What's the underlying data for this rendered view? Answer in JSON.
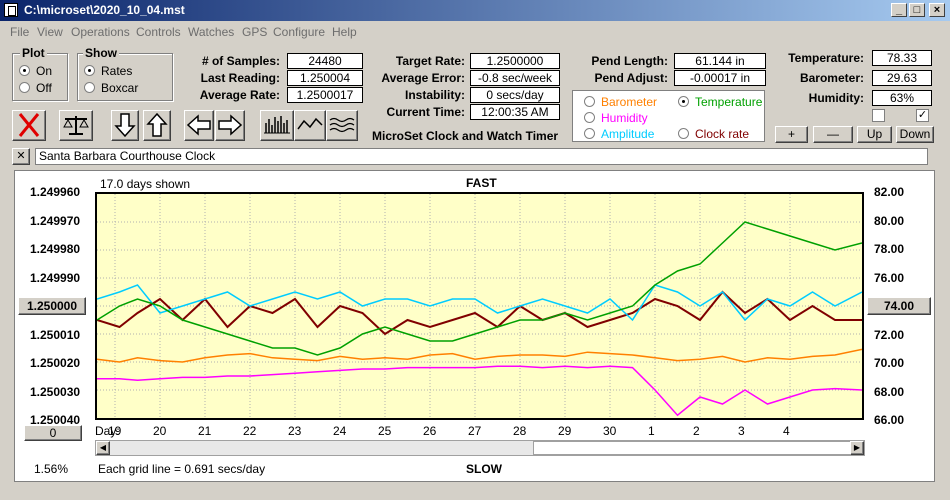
{
  "window": {
    "title": "C:\\microset\\2020_10_04.mst"
  },
  "menu": [
    "File",
    "View",
    "Operations",
    "Controls",
    "Watches",
    "GPS",
    "Configure",
    "Help"
  ],
  "plot_group": {
    "title": "Plot",
    "options": [
      "On",
      "Off"
    ],
    "selected": "On"
  },
  "show_group": {
    "title": "Show",
    "options": [
      "Rates",
      "Boxcar"
    ],
    "selected": "Rates"
  },
  "stats": {
    "samples_label": "# of Samples:",
    "samples": "24480",
    "last_label": "Last Reading:",
    "last": "1.250004",
    "avg_label": "Average Rate:",
    "avg": "1.2500017",
    "target_label": "Target Rate:",
    "target": "1.2500000",
    "avgerr_label": "Average Error:",
    "avgerr": "-0.8 sec/week",
    "instab_label": "Instability:",
    "instab": "0 secs/day",
    "time_label": "Current Time:",
    "time": "12:00:35 AM",
    "pendlen_label": "Pend Length:",
    "pendlen": "61.144 in",
    "pendadj_label": "Pend Adjust:",
    "pendadj": "-0.00017 in",
    "temp_label": "Temperature:",
    "temp": "78.33",
    "baro_label": "Barometer:",
    "baro": "29.63",
    "hum_label": "Humidity:",
    "hum": "63%"
  },
  "app_caption": "MicroSet Clock and Watch Timer",
  "sensors": [
    {
      "name": "Barometer",
      "color": "#ff8000",
      "selected": false
    },
    {
      "name": "Temperature",
      "color": "#00a000",
      "selected": true
    },
    {
      "name": "Humidity",
      "color": "#ff00ff",
      "selected": false
    },
    {
      "name": "Amplitude",
      "color": "#00ccff",
      "selected": false
    },
    {
      "name": "Clock rate",
      "color": "#800000",
      "selected": false
    }
  ],
  "sensor_buttons": [
    "+",
    "—",
    "Up",
    "Down"
  ],
  "toolbar_icons": [
    "clear-icon",
    "balance-icon",
    "arrow-down-icon",
    "arrow-up-icon",
    "arrow-left-icon",
    "arrow-right-icon",
    "histogram-icon",
    "wave-icon",
    "multi-wave-icon"
  ],
  "clock_name": "Santa Barbara Courthouse Clock",
  "close_glyph": "✕",
  "plot": {
    "days_shown": "17.0 days shown",
    "fast_label": "FAST",
    "slow_label": "SLOW",
    "left_reference": "1.250000",
    "right_reference": "74.00",
    "bottom_left_button": "0",
    "percent": "1.56%",
    "grid_note": "Each grid line = 0.691 secs/day",
    "day_label": "Day:"
  },
  "chart_data": {
    "type": "line",
    "title": "",
    "x_ticks": [
      "19",
      "20",
      "21",
      "22",
      "23",
      "24",
      "25",
      "26",
      "27",
      "28",
      "29",
      "30",
      "1",
      "2",
      "3",
      "4"
    ],
    "y_left_ticks": [
      "1.249960",
      "1.249970",
      "1.249980",
      "1.249990",
      "1.250000",
      "1.250010",
      "1.250020",
      "1.250030",
      "1.250040"
    ],
    "y_right_ticks": [
      "82.00",
      "80.00",
      "78.00",
      "76.00",
      "74.00",
      "72.00",
      "70.00",
      "68.00",
      "66.00"
    ],
    "xlim": [
      18.6,
      35.6
    ],
    "ylim_right": [
      66,
      82
    ],
    "series": [
      {
        "color": "#800000",
        "x": [
          18.6,
          19.1,
          19.5,
          20.0,
          20.5,
          21.0,
          21.5,
          22.0,
          22.5,
          23.0,
          23.5,
          24.0,
          24.5,
          25.0,
          25.5,
          26.0,
          26.5,
          27.0,
          27.5,
          28.0,
          28.5,
          29.0,
          29.5,
          30.0,
          30.5,
          31.0,
          31.5,
          32.0,
          32.5,
          33.0,
          33.5,
          34.0,
          34.5,
          35.0,
          35.6
        ],
        "values": [
          73.0,
          72.5,
          73.5,
          74.5,
          73.0,
          74.5,
          72.5,
          74.0,
          73.5,
          74.5,
          72.5,
          74.0,
          73.5,
          72.0,
          73.0,
          72.5,
          73.0,
          73.5,
          72.5,
          74.0,
          73.0,
          73.5,
          72.5,
          73.0,
          73.5,
          74.5,
          74.0,
          73.0,
          75.0,
          73.5,
          74.5,
          73.0,
          74.0,
          73.0,
          73.0
        ]
      },
      {
        "color": "#00ccff",
        "x": [
          18.6,
          19.1,
          19.5,
          20.0,
          20.5,
          21.0,
          21.5,
          22.0,
          22.5,
          23.0,
          23.5,
          24.0,
          24.5,
          25.0,
          25.5,
          26.0,
          26.5,
          27.0,
          27.5,
          28.0,
          28.5,
          29.0,
          29.5,
          30.0,
          30.5,
          31.0,
          31.5,
          32.0,
          32.5,
          33.0,
          33.5,
          34.0,
          34.5,
          35.0,
          35.6
        ],
        "values": [
          74.5,
          75.0,
          75.5,
          73.5,
          74.0,
          74.5,
          75.0,
          74.0,
          74.5,
          75.0,
          74.5,
          75.0,
          74.0,
          74.5,
          74.5,
          74.0,
          74.5,
          74.5,
          73.5,
          74.0,
          74.5,
          74.0,
          73.5,
          74.5,
          73.0,
          75.5,
          75.0,
          74.0,
          75.0,
          73.0,
          74.5,
          74.0,
          75.0,
          74.0,
          75.0
        ]
      },
      {
        "color": "#00a000",
        "x": [
          18.6,
          19.1,
          19.5,
          20.0,
          20.5,
          21.0,
          21.5,
          22.0,
          22.5,
          23.0,
          23.5,
          24.0,
          24.5,
          25.0,
          25.5,
          26.0,
          26.5,
          27.0,
          27.5,
          28.0,
          28.5,
          29.0,
          29.5,
          30.0,
          30.5,
          31.0,
          31.5,
          32.0,
          32.5,
          33.0,
          33.5,
          34.0,
          34.5,
          35.0,
          35.6
        ],
        "values": [
          73.0,
          74.0,
          74.5,
          74.0,
          73.0,
          72.5,
          72.0,
          71.5,
          71.0,
          71.0,
          70.5,
          71.0,
          72.0,
          72.5,
          72.0,
          71.5,
          71.5,
          72.0,
          72.5,
          73.0,
          73.0,
          73.5,
          73.0,
          73.5,
          74.0,
          75.5,
          76.5,
          77.0,
          78.5,
          80.0,
          79.5,
          79.0,
          78.5,
          78.0,
          78.5
        ]
      },
      {
        "color": "#ff8000",
        "x": [
          18.6,
          19.1,
          19.5,
          20.0,
          20.5,
          21.0,
          21.5,
          22.0,
          22.5,
          23.0,
          23.5,
          24.0,
          24.5,
          25.0,
          25.5,
          26.0,
          26.5,
          27.0,
          27.5,
          28.0,
          28.5,
          29.0,
          29.5,
          30.0,
          30.5,
          31.0,
          31.5,
          32.0,
          32.5,
          33.0,
          33.5,
          34.0,
          34.5,
          35.0,
          35.6
        ],
        "values": [
          70.2,
          70.0,
          70.3,
          70.1,
          70.0,
          70.3,
          70.5,
          70.6,
          70.3,
          70.2,
          70.1,
          70.4,
          70.2,
          70.3,
          70.2,
          70.5,
          70.6,
          70.2,
          70.4,
          70.5,
          70.5,
          70.4,
          70.7,
          70.6,
          70.5,
          70.3,
          70.1,
          70.2,
          70.4,
          70.0,
          70.3,
          70.2,
          70.4,
          70.5,
          70.9
        ]
      },
      {
        "color": "#ff00ff",
        "x": [
          18.6,
          19.1,
          19.5,
          20.0,
          20.5,
          21.0,
          21.5,
          22.0,
          22.5,
          23.0,
          23.5,
          24.0,
          24.5,
          25.0,
          25.5,
          26.0,
          26.5,
          27.0,
          27.5,
          28.0,
          28.5,
          29.0,
          29.5,
          30.0,
          30.5,
          31.0,
          31.5,
          32.0,
          32.5,
          33.0,
          33.5,
          34.0,
          34.5,
          35.0,
          35.6
        ],
        "values": [
          68.8,
          68.8,
          68.7,
          68.8,
          68.9,
          68.9,
          69.0,
          69.0,
          69.1,
          69.2,
          69.3,
          69.4,
          69.5,
          69.5,
          69.6,
          69.6,
          69.6,
          69.6,
          69.7,
          69.7,
          69.6,
          69.7,
          69.6,
          69.7,
          69.6,
          68.0,
          66.2,
          67.5,
          67.0,
          68.0,
          67.0,
          67.5,
          68.0,
          68.1,
          68.0
        ]
      }
    ]
  }
}
